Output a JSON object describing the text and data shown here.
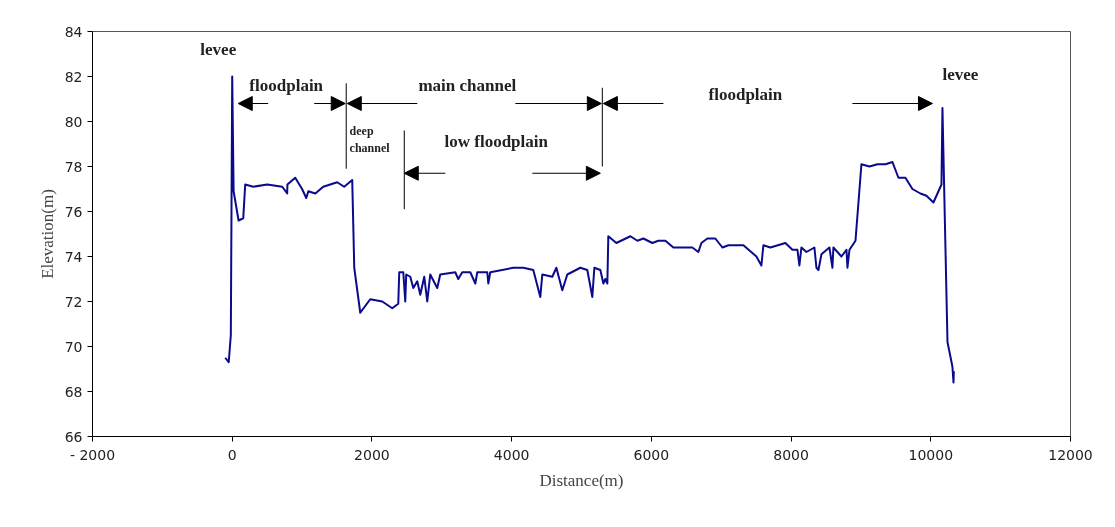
{
  "chart_data": {
    "type": "line",
    "xlabel": "Distance(m)",
    "ylabel": "Elevation(m)",
    "xlim": [
      -2000,
      12000
    ],
    "xticks": [
      {
        "value": -2000,
        "label": "- 2000"
      },
      0,
      2000,
      4000,
      6000,
      8000,
      10000,
      12000
    ],
    "ylim": [
      66,
      84
    ],
    "yticks": [
      66,
      68,
      70,
      72,
      74,
      76,
      78,
      80,
      82,
      84
    ],
    "grid": false,
    "marker": "none",
    "line_style": "solid",
    "series": [
      {
        "color": "#0a0a8c",
        "x": [
          -100,
          -50,
          -20,
          0,
          20,
          91,
          158,
          186,
          301,
          501,
          716,
          787,
          790,
          902,
          1000,
          1060,
          1090,
          1190,
          1303,
          1503,
          1603,
          1718,
          1747,
          1833,
          1904,
          1976,
          2148,
          2291,
          2377,
          2391,
          2449,
          2477,
          2491,
          2549,
          2592,
          2649,
          2692,
          2749,
          2792,
          2835,
          2935,
          2978,
          3193,
          3236,
          3293,
          3408,
          3480,
          3508,
          3651,
          3666,
          3694,
          4024,
          4167,
          4310,
          4410,
          4439,
          4582,
          4640,
          4725,
          4797,
          4983,
          5083,
          5155,
          5184,
          5270,
          5313,
          5341,
          5370,
          5384,
          5499,
          5700,
          5800,
          5886,
          6014,
          6100,
          6201,
          6315,
          6444,
          6587,
          6673,
          6716,
          6802,
          6916,
          7017,
          7103,
          7318,
          7504,
          7575,
          7604,
          7704,
          7919,
          8019,
          8091,
          8119,
          8148,
          8220,
          8334,
          8363,
          8392,
          8435,
          8549,
          8592,
          8606,
          8721,
          8793,
          8807,
          8836,
          8922,
          9007,
          9122,
          9236,
          9351,
          9451,
          9537,
          9637,
          9737,
          9852,
          9938,
          10038,
          10153,
          10167,
          10239,
          10310,
          10325,
          10330
        ],
        "values": [
          69.5,
          69.3,
          70.5,
          82.0,
          76.9,
          75.6,
          75.7,
          77.2,
          77.1,
          77.2,
          77.1,
          76.8,
          77.2,
          77.5,
          77.0,
          76.6,
          76.9,
          76.8,
          77.1,
          77.3,
          77.1,
          77.4,
          73.5,
          71.5,
          71.8,
          72.1,
          72.0,
          71.7,
          71.9,
          73.3,
          73.3,
          72.0,
          73.2,
          73.1,
          72.6,
          72.9,
          72.3,
          73.1,
          72.0,
          73.2,
          72.6,
          73.2,
          73.3,
          73.0,
          73.3,
          73.3,
          72.8,
          73.3,
          73.3,
          72.8,
          73.3,
          73.5,
          73.5,
          73.4,
          72.2,
          73.2,
          73.1,
          73.5,
          72.5,
          73.2,
          73.5,
          73.4,
          72.2,
          73.5,
          73.4,
          72.8,
          73.0,
          72.8,
          74.9,
          74.6,
          74.9,
          74.7,
          74.8,
          74.6,
          74.7,
          74.7,
          74.4,
          74.4,
          74.4,
          74.2,
          74.6,
          74.8,
          74.8,
          74.4,
          74.5,
          74.5,
          74.0,
          73.6,
          74.5,
          74.4,
          74.6,
          74.3,
          74.3,
          73.6,
          74.4,
          74.2,
          74.4,
          73.5,
          73.4,
          74.1,
          74.4,
          73.5,
          74.4,
          74.0,
          74.3,
          73.5,
          74.3,
          74.7,
          78.1,
          78.0,
          78.1,
          78.1,
          78.2,
          77.5,
          77.5,
          77.0,
          76.8,
          76.7,
          76.4,
          77.2,
          80.6,
          70.2,
          69.1,
          68.4,
          68.9
        ]
      }
    ],
    "annotations": [
      "levee",
      "floodplain",
      "main channel",
      "deep\nchannel",
      "low  floodplain",
      "floodplain",
      "levee"
    ]
  }
}
